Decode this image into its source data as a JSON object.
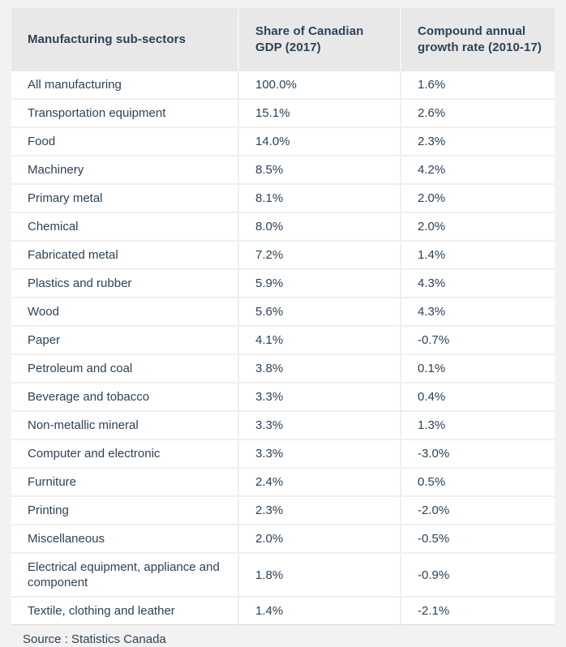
{
  "colors": {
    "page_bg": "#f3f2f2",
    "header_bg": "#e8e8e8",
    "row_bg": "#ffffff",
    "text": "#2c4257",
    "divider": "#efefef",
    "header_divider": "#f6f6f6",
    "table_bottom_border": "#dadada"
  },
  "chart_data": {
    "type": "table",
    "columns": [
      "Manufacturing sub-sectors",
      "Share of Canadian GDP (2017)",
      "Compound annual growth rate (2010-17)"
    ],
    "rows": [
      [
        "All manufacturing",
        "100.0%",
        "1.6%"
      ],
      [
        "Transportation equipment",
        "15.1%",
        "2.6%"
      ],
      [
        "Food",
        "14.0%",
        "2.3%"
      ],
      [
        "Machinery",
        "8.5%",
        "4.2%"
      ],
      [
        "Primary metal",
        "8.1%",
        "2.0%"
      ],
      [
        "Chemical",
        "8.0%",
        "2.0%"
      ],
      [
        "Fabricated metal",
        "7.2%",
        "1.4%"
      ],
      [
        "Plastics and rubber",
        "5.9%",
        "4.3%"
      ],
      [
        "Wood",
        "5.6%",
        "4.3%"
      ],
      [
        "Paper",
        "4.1%",
        "-0.7%"
      ],
      [
        "Petroleum and coal",
        "3.8%",
        "0.1%"
      ],
      [
        "Beverage and tobacco",
        "3.3%",
        "0.4%"
      ],
      [
        "Non-metallic mineral",
        "3.3%",
        "1.3%"
      ],
      [
        "Computer and electronic",
        "3.3%",
        "-3.0%"
      ],
      [
        "Furniture",
        "2.4%",
        "0.5%"
      ],
      [
        "Printing",
        "2.3%",
        "-2.0%"
      ],
      [
        "Miscellaneous",
        "2.0%",
        "-0.5%"
      ],
      [
        "Electrical equipment, appliance and component",
        "1.8%",
        "-0.9%"
      ],
      [
        "Textile, clothing and leather",
        "1.4%",
        "-2.1%"
      ]
    ],
    "source": "Source : Statistics Canada"
  }
}
